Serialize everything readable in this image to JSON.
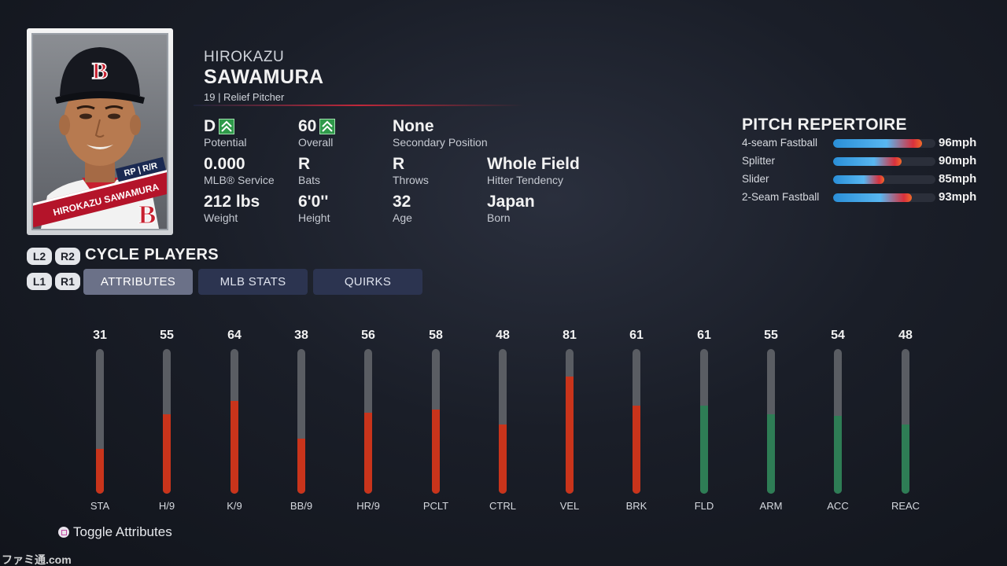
{
  "card": {
    "position_line": "RP | R/R",
    "name_banner": "HIROKAZU SAWAMURA",
    "team_logo_letter": "B"
  },
  "player": {
    "first_name": "HIROKAZU",
    "last_name": "SAWAMURA",
    "sub_line": "19 | Relief Pitcher"
  },
  "info": [
    {
      "value": "D",
      "label": "Potential",
      "icon": "up-arrow-icon"
    },
    {
      "value": "60",
      "label": "Overall",
      "icon": "up-arrow-icon"
    },
    {
      "value": "None",
      "label": "Secondary Position"
    },
    {
      "value": "0.000",
      "label": "MLB® Service"
    },
    {
      "value": "R",
      "label": "Bats"
    },
    {
      "value": "R",
      "label": "Throws"
    },
    {
      "value": "Whole Field",
      "label": "Hitter Tendency"
    },
    {
      "value": "212 lbs",
      "label": "Weight"
    },
    {
      "value": "6'0''",
      "label": "Height"
    },
    {
      "value": "32",
      "label": "Age"
    },
    {
      "value": "Japan",
      "label": "Born"
    }
  ],
  "repertoire": {
    "title": "PITCH REPERTOIRE",
    "pitches": [
      {
        "name": "4-seam Fastball",
        "speed": "96mph",
        "mph": 96
      },
      {
        "name": "Splitter",
        "speed": "90mph",
        "mph": 90
      },
      {
        "name": "Slider",
        "speed": "85mph",
        "mph": 85
      },
      {
        "name": "2-Seam Fastball",
        "speed": "93mph",
        "mph": 93
      }
    ]
  },
  "controls": {
    "cycle_keys": [
      "L2",
      "R2"
    ],
    "cycle_label": "CYCLE PLAYERS",
    "tab_keys": [
      "L1",
      "R1"
    ],
    "tabs": [
      "ATTRIBUTES",
      "MLB STATS",
      "QUIRKS"
    ],
    "active_tab": 0,
    "toggle_label": "Toggle Attributes"
  },
  "attributes": [
    {
      "label": "STA",
      "value": 31,
      "group": "pitching"
    },
    {
      "label": "H/9",
      "value": 55,
      "group": "pitching"
    },
    {
      "label": "K/9",
      "value": 64,
      "group": "pitching"
    },
    {
      "label": "BB/9",
      "value": 38,
      "group": "pitching"
    },
    {
      "label": "HR/9",
      "value": 56,
      "group": "pitching"
    },
    {
      "label": "PCLT",
      "value": 58,
      "group": "pitching"
    },
    {
      "label": "CTRL",
      "value": 48,
      "group": "pitching"
    },
    {
      "label": "VEL",
      "value": 81,
      "group": "pitching"
    },
    {
      "label": "BRK",
      "value": 61,
      "group": "pitching"
    },
    {
      "label": "FLD",
      "value": 61,
      "group": "fielding"
    },
    {
      "label": "ARM",
      "value": 55,
      "group": "fielding"
    },
    {
      "label": "ACC",
      "value": 54,
      "group": "fielding"
    },
    {
      "label": "REAC",
      "value": 48,
      "group": "fielding"
    }
  ],
  "colors": {
    "pitching": "#c9341b",
    "fielding": "#2e7d55",
    "team_red": "#b4142a",
    "team_navy": "#1b2a52"
  },
  "watermark": "ファミ通.com"
}
